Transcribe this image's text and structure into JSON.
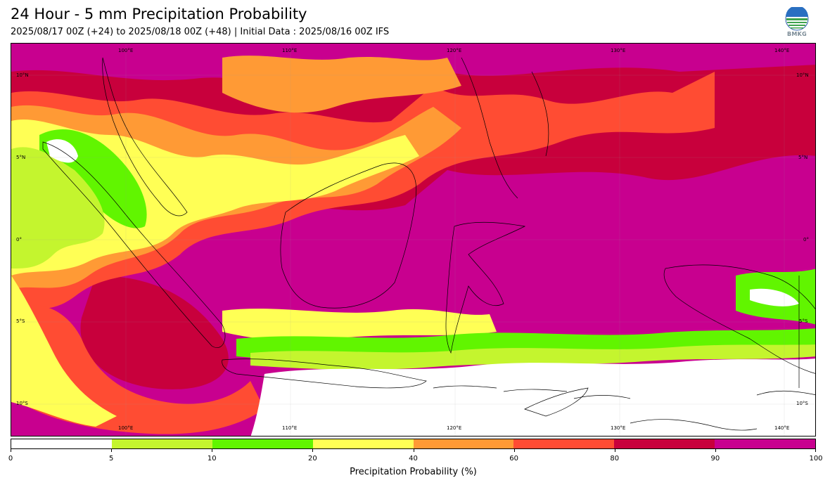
{
  "header": {
    "title": "24 Hour - 5 mm Precipitation Probability",
    "subtitle": "2025/08/17 00Z (+24) to 2025/08/18 00Z (+48) | Initial Data : 2025/08/16 00Z IFS"
  },
  "logo": {
    "text": "BMKG",
    "icon": "bmkg-globe-logo"
  },
  "map": {
    "lon_range": [
      95,
      144
    ],
    "lat_range": [
      -12,
      12
    ],
    "lon_labels": [
      "100°E",
      "110°E",
      "120°E",
      "130°E",
      "140°E"
    ],
    "lon_labels_bottom": [
      "100°E",
      "110°E",
      "120°E",
      "130°E",
      "140°E"
    ],
    "lat_labels_left": [
      "10°N",
      "5°N",
      "0°",
      "5°S",
      "10°S"
    ],
    "lat_labels_right": [
      "10°N",
      "5°N",
      "0°",
      "5°S",
      "10°S"
    ],
    "gridlines": true
  },
  "colorbar": {
    "title": "Precipitation Probability (%)",
    "bounds": [
      "0",
      "5",
      "10",
      "20",
      "40",
      "60",
      "80",
      "90",
      "100"
    ],
    "colors": [
      "#ffffff",
      "#c4f52e",
      "#61f500",
      "#ffff55",
      "#ff9a35",
      "#ff4c33",
      "#c8003c",
      "#c8008f"
    ]
  }
}
